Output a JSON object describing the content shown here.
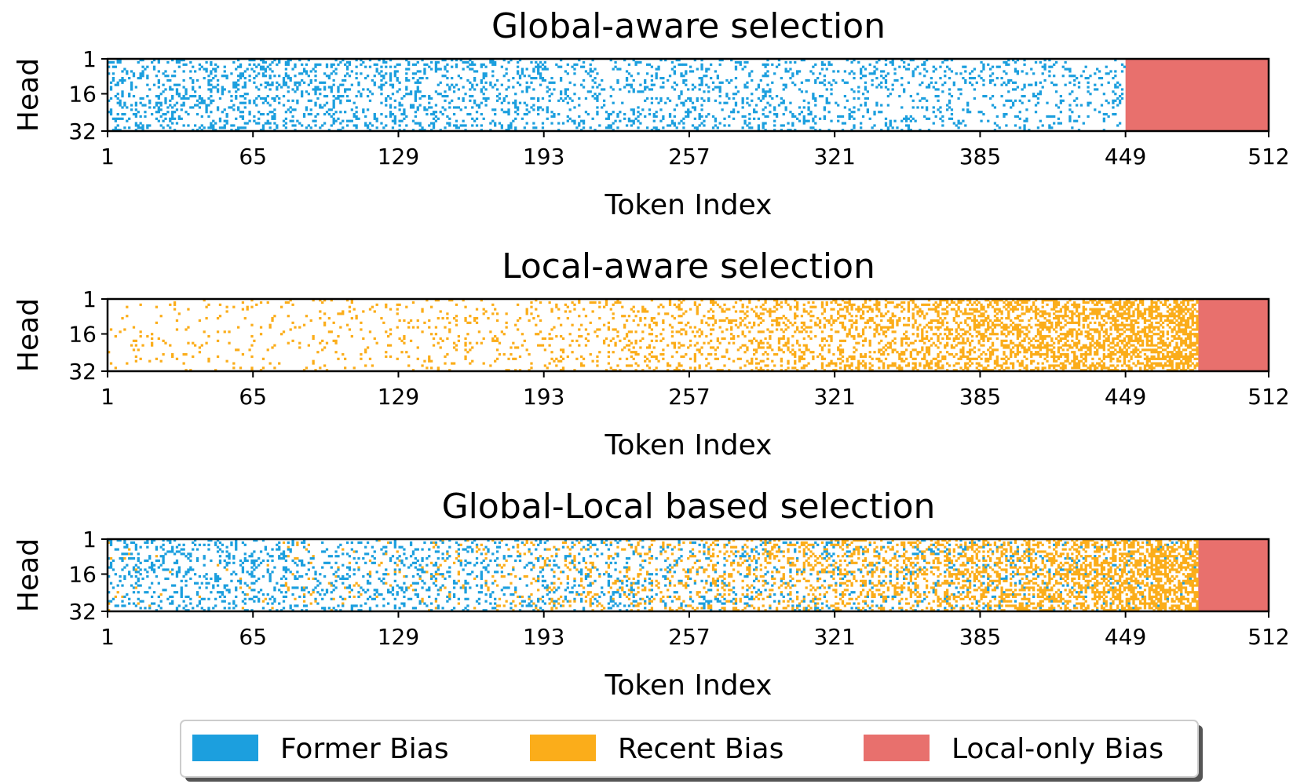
{
  "colors": {
    "former": "#1c9fde",
    "recent": "#fbad1a",
    "local_only": "#e8706d"
  },
  "legend": {
    "items": [
      {
        "label": "Former Bias",
        "color": "#1c9fde"
      },
      {
        "label": "Recent Bias",
        "color": "#fbad1a"
      },
      {
        "label": "Local-only Bias",
        "color": "#e8706d"
      }
    ],
    "placement": "bottom-center"
  },
  "chart_data": [
    {
      "type": "heatmap",
      "title": "Global-aware selection",
      "xlabel": "Token Index",
      "ylabel": "Head",
      "xticks": [
        "1",
        "65",
        "129",
        "193",
        "257",
        "321",
        "385",
        "449",
        "512"
      ],
      "yticks": [
        "1",
        "16",
        "32"
      ],
      "xlim": [
        1,
        512
      ],
      "ylim": [
        1,
        32
      ],
      "local_only_range": [
        449,
        512
      ],
      "former_density": {
        "start": 1,
        "end": 448,
        "from": 0.22,
        "to": 0.12
      },
      "recent_density": {
        "start": 1,
        "end": 448,
        "from": 0.0,
        "to": 0.0
      }
    },
    {
      "type": "heatmap",
      "title": "Local-aware selection",
      "xlabel": "Token Index",
      "ylabel": "Head",
      "xticks": [
        "1",
        "65",
        "129",
        "193",
        "257",
        "321",
        "385",
        "449",
        "512"
      ],
      "yticks": [
        "1",
        "16",
        "32"
      ],
      "xlim": [
        1,
        512
      ],
      "ylim": [
        1,
        32
      ],
      "local_only_range": [
        481,
        512
      ],
      "former_density": {
        "start": 1,
        "end": 480,
        "from": 0.0,
        "to": 0.0
      },
      "recent_density": {
        "start": 1,
        "end": 480,
        "from": 0.04,
        "to": 0.6
      }
    },
    {
      "type": "heatmap",
      "title": "Global-Local based selection",
      "xlabel": "Token Index",
      "ylabel": "Head",
      "xticks": [
        "1",
        "65",
        "129",
        "193",
        "257",
        "321",
        "385",
        "449",
        "512"
      ],
      "yticks": [
        "1",
        "16",
        "32"
      ],
      "xlim": [
        1,
        512
      ],
      "ylim": [
        1,
        32
      ],
      "local_only_range": [
        481,
        512
      ],
      "former_density": {
        "start": 1,
        "end": 480,
        "from": 0.2,
        "to": 0.02
      },
      "recent_density": {
        "start": 1,
        "end": 480,
        "from": 0.01,
        "to": 0.55
      }
    }
  ]
}
